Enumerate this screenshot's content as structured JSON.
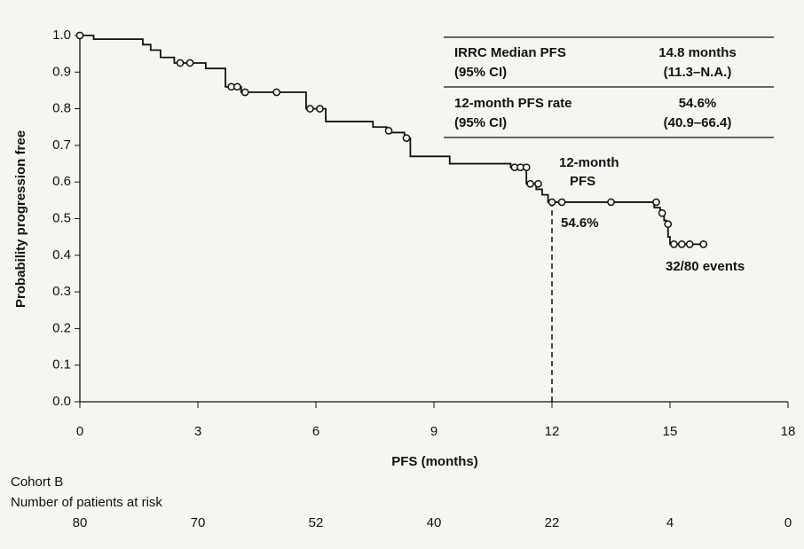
{
  "chart_data": {
    "type": "step",
    "x_label": "PFS (months)",
    "y_label": "Probability progression free",
    "xlim": [
      0,
      18
    ],
    "ylim": [
      0,
      1
    ],
    "xticks": [
      0,
      3,
      6,
      9,
      12,
      15,
      18
    ],
    "yticks": [
      {
        "value": 0,
        "label": "0.0"
      },
      0.1,
      0.2,
      0.3,
      0.4,
      0.5,
      0.6,
      0.7,
      0.8,
      0.9,
      {
        "value": 1,
        "label": "1.0"
      }
    ],
    "series": [
      {
        "color": "#111111",
        "x": [
          0,
          0.35,
          0.35,
          1.6,
          1.6,
          1.8,
          1.8,
          2.05,
          2.05,
          2.4,
          2.4,
          3.2,
          3.2,
          3.7,
          3.7,
          4.1,
          4.1,
          5.75,
          5.75,
          6.25,
          6.25,
          7.45,
          7.45,
          7.8,
          7.8,
          8.25,
          8.25,
          8.4,
          8.4,
          9.4,
          9.4,
          10.95,
          10.95,
          11.35,
          11.35,
          11.6,
          11.6,
          11.75,
          11.75,
          11.9,
          11.9,
          14.6,
          14.6,
          14.75,
          14.75,
          14.85,
          14.85,
          14.9,
          14.9,
          14.95,
          14.95,
          15.0,
          15.0,
          15.95
        ],
        "values": [
          1,
          1,
          0.99,
          0.99,
          0.975,
          0.975,
          0.96,
          0.96,
          0.94,
          0.94,
          0.925,
          0.925,
          0.91,
          0.91,
          0.86,
          0.86,
          0.845,
          0.845,
          0.8,
          0.8,
          0.765,
          0.765,
          0.75,
          0.75,
          0.735,
          0.735,
          0.72,
          0.72,
          0.67,
          0.67,
          0.65,
          0.65,
          0.64,
          0.64,
          0.595,
          0.595,
          0.58,
          0.58,
          0.565,
          0.565,
          0.545,
          0.545,
          0.53,
          0.53,
          0.515,
          0.515,
          0.495,
          0.495,
          0.48,
          0.48,
          0.45,
          0.45,
          0.43,
          0.43
        ]
      },
      {
        "color": "#111111",
        "x": [
          0,
          2.55,
          2.8,
          3.85,
          4.0,
          4.2,
          5.0,
          5.85,
          6.1,
          7.85,
          8.3,
          11.05,
          11.2,
          11.35,
          11.45,
          11.65,
          12.0,
          12.25,
          13.5,
          14.65,
          14.8,
          14.95,
          15.1,
          15.3,
          15.5,
          15.85
        ],
        "values": [
          1,
          0.925,
          0.925,
          0.86,
          0.86,
          0.845,
          0.845,
          0.8,
          0.8,
          0.74,
          0.72,
          0.64,
          0.64,
          0.64,
          0.595,
          0.595,
          0.545,
          0.545,
          0.545,
          0.545,
          0.515,
          0.485,
          0.43,
          0.43,
          0.43,
          0.43
        ]
      }
    ],
    "reference_x": 12,
    "reference_y": 0.546,
    "annotations": {
      "landmark": [
        "12-month",
        "PFS"
      ],
      "landmark_value": "54.6%",
      "events": "32/80 events"
    },
    "summary_table": [
      [
        "IRRC Median PFS",
        "14.8 months"
      ],
      [
        "(95% CI)",
        "(11.3–N.A.)"
      ],
      [
        "12-month PFS rate",
        "54.6%"
      ],
      [
        "(95% CI)",
        "(40.9–66.4)"
      ]
    ],
    "risk_table": {
      "cohort": "Cohort B",
      "label": "Number of patients at risk",
      "values": [
        80,
        70,
        52,
        40,
        22,
        4,
        0
      ]
    }
  }
}
